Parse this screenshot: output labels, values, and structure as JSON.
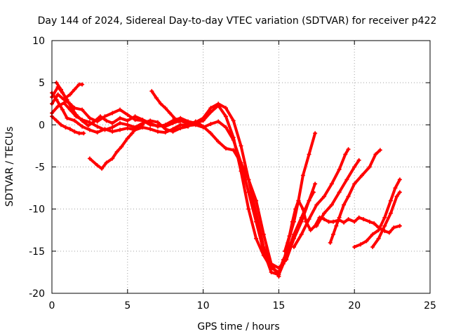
{
  "chart_data": {
    "type": "scatter",
    "title": "Day 144 of 2024, Sidereal Day-to-day VTEC variation (SDTVAR) for receiver p422",
    "xlabel": "GPS time / hours",
    "ylabel": "SDTVAR / TECUs",
    "xlim": [
      0,
      25
    ],
    "ylim": [
      -20,
      10
    ],
    "xticks": [
      "0",
      "5",
      "10",
      "15",
      "20",
      "25"
    ],
    "yticks": [
      "-20",
      "-15",
      "-10",
      "-5",
      "0",
      "5",
      "10"
    ],
    "grid": true,
    "marker": "+",
    "color": "#ff0000",
    "series": [
      {
        "values": [
          [
            0.0,
            3.8
          ],
          [
            0.3,
            3.0
          ],
          [
            0.7,
            1.8
          ],
          [
            1.0,
            0.8
          ],
          [
            1.5,
            0.5
          ],
          [
            2.0,
            -0.2
          ],
          [
            2.5,
            -0.6
          ],
          [
            3.0,
            -0.9
          ],
          [
            3.5,
            -0.5
          ],
          [
            4.0,
            -0.8
          ],
          [
            4.5,
            -0.6
          ],
          [
            5.0,
            -0.4
          ],
          [
            5.5,
            -0.6
          ],
          [
            6.0,
            -0.3
          ],
          [
            6.5,
            -0.5
          ],
          [
            7.0,
            -0.8
          ],
          [
            7.5,
            -0.9
          ],
          [
            8.0,
            -0.5
          ],
          [
            8.5,
            0.0
          ],
          [
            9.0,
            -0.1
          ],
          [
            9.5,
            0.0
          ],
          [
            10.0,
            -0.3
          ],
          [
            10.5,
            0.1
          ],
          [
            11.0,
            0.4
          ],
          [
            11.5,
            -0.3
          ],
          [
            12.0,
            -1.8
          ],
          [
            12.5,
            -4.5
          ],
          [
            13.0,
            -8.0
          ],
          [
            13.5,
            -11.5
          ],
          [
            14.0,
            -15.0
          ],
          [
            14.5,
            -17.5
          ],
          [
            15.0,
            -17.8
          ],
          [
            15.3,
            -16.5
          ],
          [
            15.6,
            -14.0
          ],
          [
            16.0,
            -11.5
          ],
          [
            16.3,
            -9.0
          ],
          [
            16.6,
            -6.0
          ],
          [
            17.0,
            -3.5
          ],
          [
            17.4,
            -1.0
          ]
        ]
      },
      {
        "values": [
          [
            0.0,
            3.3
          ],
          [
            0.4,
            4.5
          ],
          [
            0.7,
            3.8
          ],
          [
            1.0,
            3.0
          ],
          [
            1.3,
            2.0
          ],
          [
            1.6,
            1.2
          ],
          [
            2.0,
            0.5
          ],
          [
            2.4,
            -0.1
          ],
          [
            2.8,
            0.4
          ],
          [
            3.2,
            1.0
          ],
          [
            3.6,
            0.5
          ],
          [
            4.0,
            0.2
          ],
          [
            4.5,
            0.8
          ],
          [
            5.0,
            0.5
          ],
          [
            5.5,
            1.0
          ],
          [
            6.0,
            0.6
          ],
          [
            6.5,
            0.2
          ],
          [
            7.0,
            -0.2
          ],
          [
            7.5,
            0.0
          ],
          [
            8.0,
            0.5
          ],
          [
            8.5,
            0.8
          ],
          [
            9.0,
            0.4
          ],
          [
            9.5,
            0.2
          ],
          [
            10.0,
            0.5
          ],
          [
            10.5,
            1.5
          ],
          [
            11.0,
            2.3
          ],
          [
            11.5,
            1.0
          ],
          [
            12.0,
            -1.5
          ],
          [
            12.5,
            -5.5
          ],
          [
            13.0,
            -10.0
          ],
          [
            13.5,
            -13.5
          ],
          [
            14.0,
            -15.5
          ],
          [
            14.5,
            -17.0
          ],
          [
            15.0,
            -17.5
          ],
          [
            15.3,
            -16.0
          ],
          [
            15.7,
            -14.5
          ],
          [
            16.0,
            -13.0
          ],
          [
            16.5,
            -11.0
          ],
          [
            17.0,
            -9.0
          ],
          [
            17.4,
            -7.0
          ]
        ]
      },
      {
        "values": [
          [
            0.0,
            2.5
          ],
          [
            0.4,
            3.6
          ],
          [
            0.8,
            3.0
          ],
          [
            1.2,
            2.5
          ],
          [
            1.5,
            2.0
          ],
          [
            2.0,
            1.8
          ],
          [
            2.5,
            0.8
          ],
          [
            3.0,
            0.4
          ],
          [
            3.5,
            1.0
          ],
          [
            4.0,
            1.4
          ],
          [
            4.5,
            1.8
          ],
          [
            5.0,
            1.2
          ],
          [
            5.5,
            0.6
          ],
          [
            6.0,
            0.5
          ],
          [
            6.5,
            0.0
          ],
          [
            7.0,
            -0.1
          ],
          [
            7.5,
            -0.2
          ],
          [
            8.0,
            0.2
          ],
          [
            8.5,
            0.5
          ],
          [
            9.0,
            0.1
          ],
          [
            9.5,
            0.3
          ],
          [
            10.0,
            0.8
          ],
          [
            10.5,
            2.0
          ],
          [
            11.0,
            2.5
          ],
          [
            11.5,
            2.0
          ],
          [
            12.0,
            0.5
          ],
          [
            12.5,
            -2.5
          ],
          [
            13.0,
            -6.5
          ],
          [
            13.5,
            -10.5
          ],
          [
            14.0,
            -14.5
          ],
          [
            14.5,
            -16.5
          ],
          [
            15.0,
            -17.0
          ],
          [
            15.5,
            -16.0
          ],
          [
            16.0,
            -13.5
          ],
          [
            16.5,
            -11.5
          ],
          [
            17.0,
            -9.0
          ],
          [
            17.3,
            -8.0
          ]
        ]
      },
      {
        "values": [
          [
            0.0,
            1.4
          ],
          [
            0.4,
            2.2
          ],
          [
            0.8,
            2.6
          ],
          [
            1.2,
            1.8
          ],
          [
            1.6,
            1.0
          ],
          [
            2.0,
            0.6
          ],
          [
            2.5,
            0.3
          ],
          [
            3.0,
            -0.2
          ],
          [
            3.5,
            -0.6
          ],
          [
            4.0,
            -0.3
          ],
          [
            4.5,
            0.2
          ],
          [
            5.0,
            0.0
          ],
          [
            5.5,
            -0.3
          ],
          [
            6.0,
            0.2
          ],
          [
            6.5,
            0.5
          ],
          [
            7.0,
            0.3
          ],
          [
            7.5,
            -0.5
          ],
          [
            8.0,
            -0.8
          ],
          [
            8.5,
            -0.4
          ],
          [
            9.0,
            -0.2
          ],
          [
            9.5,
            0.4
          ],
          [
            10.0,
            -0.2
          ],
          [
            10.5,
            -1.0
          ],
          [
            11.0,
            -2.0
          ],
          [
            11.5,
            -2.8
          ],
          [
            12.0,
            -3.0
          ],
          [
            12.5,
            -4.5
          ],
          [
            13.0,
            -6.5
          ],
          [
            13.5,
            -9.0
          ],
          [
            14.0,
            -13.0
          ],
          [
            14.5,
            -16.5
          ],
          [
            15.0,
            -18.0
          ]
        ]
      },
      {
        "values": [
          [
            0.0,
            1.0
          ],
          [
            0.3,
            0.5
          ],
          [
            0.6,
            0.0
          ],
          [
            0.9,
            -0.3
          ],
          [
            1.2,
            -0.5
          ],
          [
            1.5,
            -0.8
          ],
          [
            1.8,
            -1.0
          ],
          [
            2.1,
            -1.0
          ]
        ]
      },
      {
        "values": [
          [
            0.3,
            5.0
          ],
          [
            0.6,
            4.2
          ],
          [
            0.9,
            3.2
          ],
          [
            1.2,
            3.6
          ],
          [
            1.5,
            4.2
          ],
          [
            1.8,
            4.8
          ],
          [
            2.0,
            4.8
          ]
        ]
      },
      {
        "values": [
          [
            2.5,
            -4.0
          ],
          [
            3.0,
            -4.8
          ],
          [
            3.3,
            -5.2
          ],
          [
            3.6,
            -4.5
          ],
          [
            4.0,
            -4.0
          ],
          [
            4.3,
            -3.2
          ],
          [
            4.6,
            -2.6
          ],
          [
            5.0,
            -1.6
          ],
          [
            5.3,
            -1.0
          ],
          [
            5.6,
            -0.3
          ],
          [
            6.0,
            0.0
          ]
        ]
      },
      {
        "values": [
          [
            6.6,
            4.0
          ],
          [
            6.9,
            3.2
          ],
          [
            7.2,
            2.5
          ],
          [
            7.5,
            2.0
          ],
          [
            7.8,
            1.4
          ],
          [
            8.1,
            0.8
          ],
          [
            8.4,
            0.4
          ]
        ]
      },
      {
        "values": [
          [
            15.4,
            -15.0
          ],
          [
            15.7,
            -13.2
          ],
          [
            15.9,
            -11.5
          ],
          [
            16.1,
            -10.0
          ],
          [
            16.3,
            -9.0
          ],
          [
            16.6,
            -10.0
          ],
          [
            16.8,
            -11.5
          ],
          [
            17.1,
            -12.5
          ],
          [
            17.4,
            -12.0
          ],
          [
            17.7,
            -11.0
          ],
          [
            18.0,
            -11.2
          ],
          [
            18.3,
            -11.5
          ],
          [
            18.6,
            -11.5
          ],
          [
            19.0,
            -11.3
          ],
          [
            19.3,
            -11.6
          ],
          [
            19.6,
            -11.2
          ],
          [
            20.0,
            -11.5
          ],
          [
            20.3,
            -11.0
          ],
          [
            20.6,
            -11.2
          ],
          [
            21.0,
            -11.5
          ],
          [
            21.3,
            -11.7
          ],
          [
            21.6,
            -12.2
          ],
          [
            22.0,
            -12.6
          ],
          [
            22.3,
            -12.8
          ],
          [
            22.6,
            -12.2
          ],
          [
            23.0,
            -12.0
          ]
        ]
      },
      {
        "values": [
          [
            16.0,
            -14.5
          ],
          [
            16.5,
            -13.0
          ],
          [
            17.0,
            -11.2
          ],
          [
            17.5,
            -9.5
          ],
          [
            18.0,
            -8.5
          ],
          [
            18.5,
            -7.0
          ],
          [
            19.0,
            -5.3
          ],
          [
            19.4,
            -3.5
          ],
          [
            19.6,
            -2.9
          ]
        ]
      },
      {
        "values": [
          [
            17.5,
            -12.0
          ],
          [
            18.0,
            -10.5
          ],
          [
            18.5,
            -9.5
          ],
          [
            19.0,
            -8.0
          ],
          [
            19.5,
            -6.5
          ],
          [
            20.0,
            -5.0
          ],
          [
            20.3,
            -4.2
          ]
        ]
      },
      {
        "values": [
          [
            18.4,
            -14.0
          ],
          [
            18.6,
            -13.0
          ],
          [
            18.8,
            -12.0
          ],
          [
            19.0,
            -11.0
          ],
          [
            19.3,
            -9.5
          ],
          [
            19.6,
            -8.5
          ],
          [
            20.0,
            -7.0
          ],
          [
            20.5,
            -6.0
          ],
          [
            21.0,
            -5.0
          ],
          [
            21.4,
            -3.5
          ],
          [
            21.7,
            -3.0
          ]
        ]
      },
      {
        "values": [
          [
            20.0,
            -14.5
          ],
          [
            20.4,
            -14.2
          ],
          [
            20.8,
            -13.8
          ],
          [
            21.2,
            -13.0
          ],
          [
            21.6,
            -12.5
          ],
          [
            22.0,
            -11.0
          ],
          [
            22.4,
            -9.0
          ],
          [
            22.7,
            -7.5
          ],
          [
            23.0,
            -6.5
          ]
        ]
      },
      {
        "values": [
          [
            21.2,
            -14.5
          ],
          [
            21.6,
            -13.5
          ],
          [
            22.0,
            -12.0
          ],
          [
            22.4,
            -10.5
          ],
          [
            22.8,
            -8.5
          ],
          [
            23.0,
            -8.0
          ]
        ]
      }
    ]
  }
}
